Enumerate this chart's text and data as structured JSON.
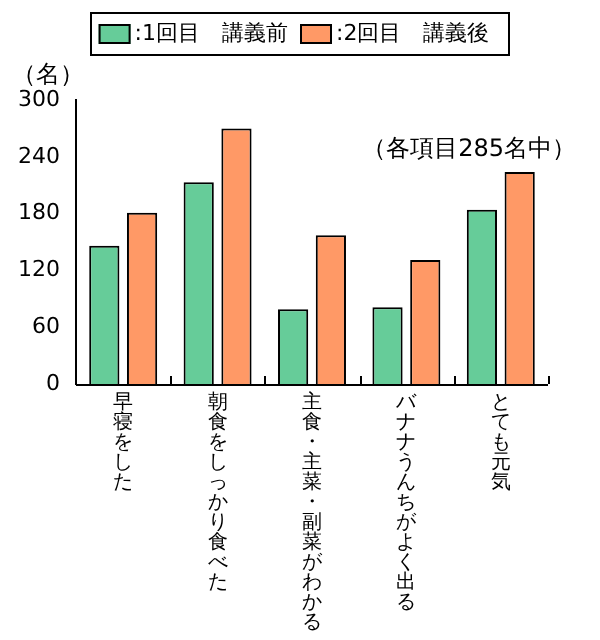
{
  "chart_data": {
    "type": "bar",
    "ylabel": "（名）",
    "annotations": [
      "（各項目285名中）"
    ],
    "categories": [
      "早寝をした",
      "朝食をしっかり食べた",
      "主食・主菜・副菜がわかる",
      "バナナうんちがよく出る",
      "とても元気"
    ],
    "series": [
      {
        "name": ":1回目　講義前",
        "color": "#66cc99",
        "values": [
          146,
          213,
          79,
          81,
          184
        ]
      },
      {
        "name": ":2回目　講義後",
        "color": "#ff9966",
        "values": [
          181,
          270,
          157,
          131,
          224
        ]
      }
    ],
    "ylim": [
      0,
      300
    ],
    "yticks": [
      0,
      60,
      120,
      180,
      240,
      300
    ],
    "grid": false,
    "legend": "top"
  }
}
